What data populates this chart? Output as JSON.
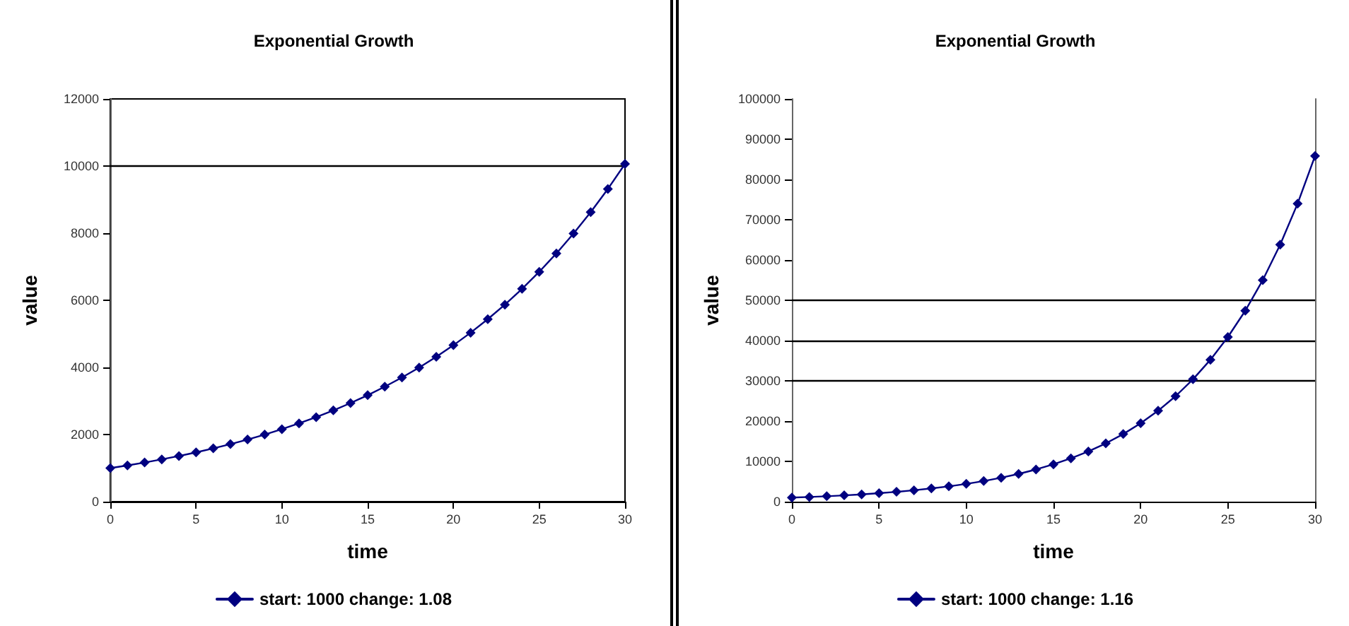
{
  "chart_data": [
    {
      "type": "line",
      "title": "Exponential Growth",
      "xlabel": "time",
      "ylabel": "value",
      "x": [
        0,
        1,
        2,
        3,
        4,
        5,
        6,
        7,
        8,
        9,
        10,
        11,
        12,
        13,
        14,
        15,
        16,
        17,
        18,
        19,
        20,
        21,
        22,
        23,
        24,
        25,
        26,
        27,
        28,
        29,
        30
      ],
      "series": [
        {
          "name": "start: 1000 change: 1.08",
          "color": "#000080",
          "values": [
            1000,
            1080,
            1166,
            1260,
            1360,
            1469,
            1587,
            1714,
            1851,
            1999,
            2159,
            2332,
            2518,
            2720,
            2937,
            3172,
            3426,
            3700,
            3996,
            4316,
            4661,
            5034,
            5437,
            5871,
            6341,
            6848,
            7396,
            7988,
            8627,
            9317,
            10063
          ]
        }
      ],
      "xlim": [
        0,
        30
      ],
      "xticks": [
        0,
        5,
        10,
        15,
        20,
        25,
        30
      ],
      "ylim": [
        0,
        12000
      ],
      "yticks": [
        0,
        2000,
        4000,
        6000,
        8000,
        10000,
        12000
      ],
      "ref_lines": [
        {
          "axis": "y",
          "value": 10000,
          "color": "#000000"
        }
      ],
      "marker": "diamond",
      "legend": "bottom",
      "grid": false
    },
    {
      "type": "line",
      "title": "Exponential Growth",
      "xlabel": "time",
      "ylabel": "value",
      "x": [
        0,
        1,
        2,
        3,
        4,
        5,
        6,
        7,
        8,
        9,
        10,
        11,
        12,
        13,
        14,
        15,
        16,
        17,
        18,
        19,
        20,
        21,
        22,
        23,
        24,
        25,
        26,
        27,
        28,
        29,
        30
      ],
      "series": [
        {
          "name": "start: 1000 change: 1.16",
          "color": "#000080",
          "values": [
            1000,
            1160,
            1346,
            1561,
            1811,
            2100,
            2436,
            2826,
            3278,
            3803,
            4411,
            5117,
            5936,
            6886,
            7988,
            9266,
            10748,
            12468,
            14463,
            16777,
            19461,
            22574,
            26186,
            30376,
            35236,
            40874,
            47414,
            55000,
            63800,
            74009,
            85850
          ]
        }
      ],
      "xlim": [
        0,
        30
      ],
      "xticks": [
        0,
        5,
        10,
        15,
        20,
        25,
        30
      ],
      "ylim": [
        0,
        100000
      ],
      "yticks": [
        0,
        10000,
        20000,
        30000,
        40000,
        50000,
        60000,
        70000,
        80000,
        90000,
        100000
      ],
      "ref_lines": [
        {
          "axis": "y",
          "value": 30000,
          "color": "#000000"
        },
        {
          "axis": "y",
          "value": 40000,
          "color": "#000000"
        },
        {
          "axis": "y",
          "value": 50000,
          "color": "#000000"
        }
      ],
      "marker": "diamond",
      "legend": "bottom",
      "grid": false
    }
  ]
}
